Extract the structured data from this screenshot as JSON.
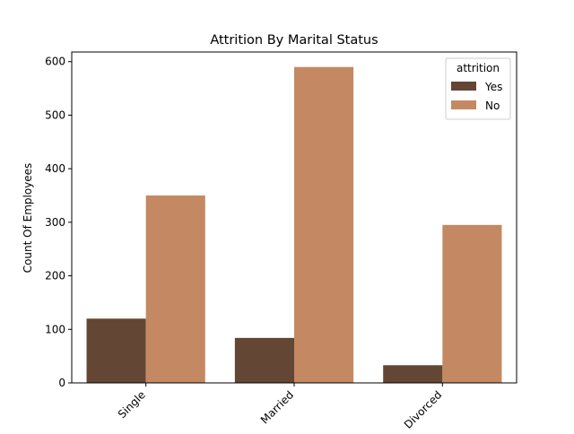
{
  "chart_data": {
    "type": "bar",
    "title": "Attrition By Marital Status",
    "xlabel": "",
    "ylabel": "Count Of Employees",
    "categories": [
      "Single",
      "Married",
      "Divorced"
    ],
    "series": [
      {
        "name": "Yes",
        "values": [
          120,
          84,
          33
        ],
        "color": "#634633"
      },
      {
        "name": "No",
        "values": [
          350,
          590,
          295
        ],
        "color": "#c48962"
      }
    ],
    "ylim": [
      0,
      618
    ],
    "yticks": [
      0,
      100,
      200,
      300,
      400,
      500,
      600
    ],
    "legend": {
      "title": "attrition",
      "placement": "top-right"
    },
    "grid": false
  }
}
